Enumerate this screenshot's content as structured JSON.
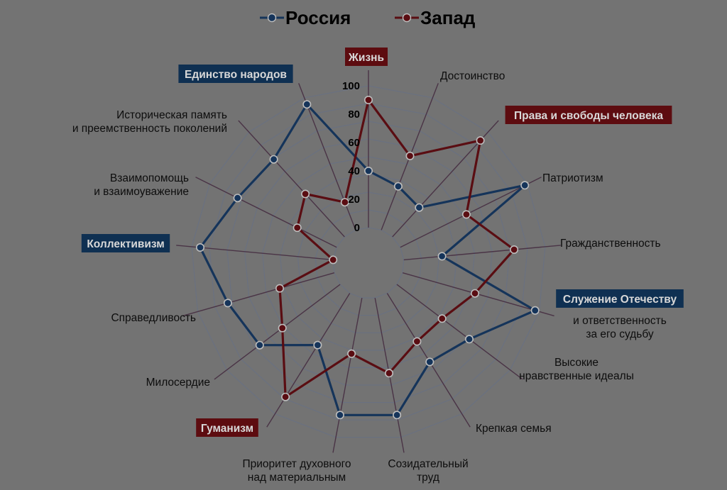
{
  "chart_data": {
    "type": "radar",
    "categories": [
      "Жизнь",
      "Достоинство",
      "Права и свободы человека",
      "Патриотизм",
      "Гражданственность",
      "Служение Отечеству и ответственность за его судьбу",
      "Высокие нравственные идеалы",
      "Крепкая семья",
      "Созидательный труд",
      "Приоритет духовного над материальным",
      "Гуманизм",
      "Милосердие",
      "Справедливость",
      "Коллективизм",
      "Взаимопомощь и взаимоуважение",
      "Историческая память и преемственность поколений",
      "Единство народов"
    ],
    "axis_labels": [
      {
        "lines": [
          "Жизнь"
        ],
        "boxed": true,
        "box_color": "#5d0c10"
      },
      {
        "lines": [
          "Достоинство"
        ],
        "boxed": false
      },
      {
        "lines": [
          "Права и свободы человека"
        ],
        "boxed": true,
        "box_color": "#5d0c10"
      },
      {
        "lines": [
          "Патриотизм"
        ],
        "boxed": false
      },
      {
        "lines": [
          "Гражданственность"
        ],
        "boxed": false
      },
      {
        "lines": [
          "Служение Отечеству",
          "и ответственность",
          "за его судьбу"
        ],
        "boxed": true,
        "box_color": "#0f3052"
      },
      {
        "lines": [
          "Высокие",
          "нравственные идеалы"
        ],
        "boxed": false
      },
      {
        "lines": [
          "Крепкая семья"
        ],
        "boxed": false
      },
      {
        "lines": [
          "Созидательный",
          "труд"
        ],
        "boxed": false
      },
      {
        "lines": [
          "Приоритет духовного",
          "над материальным"
        ],
        "boxed": false
      },
      {
        "lines": [
          "Гуманизм"
        ],
        "boxed": true,
        "box_color": "#5d0c10"
      },
      {
        "lines": [
          "Милосердие"
        ],
        "boxed": false
      },
      {
        "lines": [
          "Справедливость"
        ],
        "boxed": false
      },
      {
        "lines": [
          "Коллективизм"
        ],
        "boxed": true,
        "box_color": "#0f3052"
      },
      {
        "lines": [
          "Взаимопомощь",
          "и взаимоуважение"
        ],
        "boxed": false
      },
      {
        "lines": [
          "Историческая память",
          "и преемственность поколений"
        ],
        "boxed": false
      },
      {
        "lines": [
          "Единство народов"
        ],
        "boxed": true,
        "box_color": "#0f3052"
      }
    ],
    "series": [
      {
        "name": "Россия",
        "color": "#15345a",
        "values": [
          40,
          33,
          28,
          98,
          27,
          97,
          64,
          57,
          84,
          84,
          43,
          71,
          78,
          94,
          78,
          74,
          95
        ]
      },
      {
        "name": "Запад",
        "color": "#5a0d12",
        "values": [
          90,
          56,
          92,
          52,
          78,
          53,
          40,
          40,
          54,
          40,
          86,
          51,
          40,
          0,
          31,
          41,
          21
        ]
      }
    ],
    "r_ticks": [
      0,
      20,
      40,
      60,
      80,
      100
    ],
    "r_range": [
      -20,
      100
    ],
    "legend_position": "top-center",
    "grid": true
  }
}
